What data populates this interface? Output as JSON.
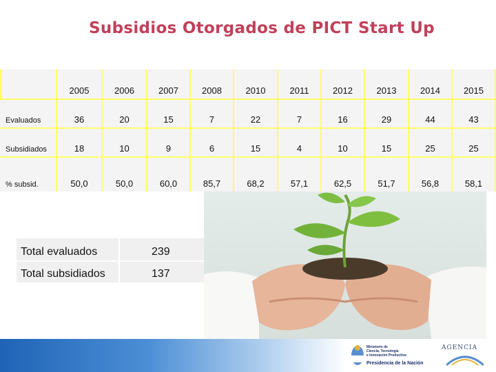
{
  "title": "Subsidios Otorgados de PICT Start Up",
  "table": {
    "years": [
      "2005",
      "2006",
      "2007",
      "2008",
      "2010",
      "2011",
      "2012",
      "2013",
      "2014",
      "2015"
    ],
    "rows": [
      {
        "label": "Evaluados",
        "values": [
          "36",
          "20",
          "15",
          "7",
          "22",
          "7",
          "16",
          "29",
          "44",
          "43"
        ]
      },
      {
        "label": "Subsidiados",
        "values": [
          "18",
          "10",
          "9",
          "6",
          "15",
          "4",
          "10",
          "15",
          "25",
          "25"
        ]
      },
      {
        "label": "% subsid.",
        "values": [
          "50,0",
          "50,0",
          "60,0",
          "85,7",
          "68,2",
          "57,1",
          "62,5",
          "51,7",
          "56,8",
          "58,1"
        ]
      }
    ]
  },
  "totals": [
    {
      "label": "Total evaluados",
      "value": "239"
    },
    {
      "label": "Total subsidiados",
      "value": "137"
    }
  ],
  "footer": {
    "ministry_lines": [
      "Ministerio de",
      "Ciencia, Tecnología",
      "e Innovación Productiva"
    ],
    "presidency": "Presidencia de la Nación",
    "agency": "AGENCIA"
  },
  "colors": {
    "title": "#c0415a",
    "grid_bg": "#ffff66",
    "cell_bg": "#f4f4f4",
    "footer_blue": "#1e63b6"
  }
}
